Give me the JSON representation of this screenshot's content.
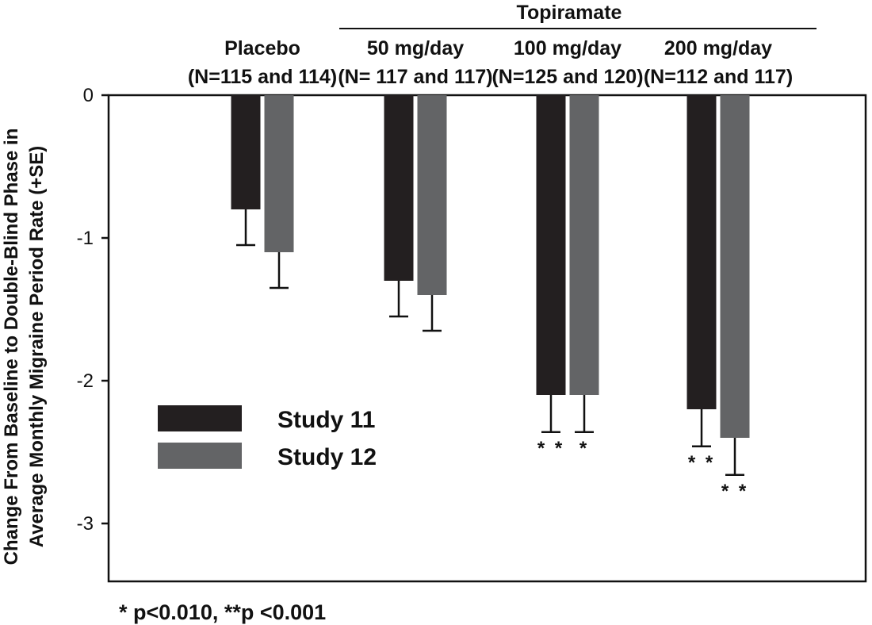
{
  "chart_data": {
    "type": "bar",
    "group_header": "Topiramate",
    "categories": [
      {
        "name": "Placebo",
        "n": "(N=115 and 114)"
      },
      {
        "name": "50 mg/day",
        "n": "(N= 117 and 117)"
      },
      {
        "name": "100 mg/day",
        "n": "(N=125 and 120)"
      },
      {
        "name": "200 mg/day",
        "n": "(N=112 and 117)"
      }
    ],
    "series": [
      {
        "name": "Study 11",
        "color": "#231f20",
        "values": [
          -0.8,
          -1.3,
          -2.1,
          -2.2
        ],
        "se": [
          0.25,
          0.25,
          0.26,
          0.26
        ],
        "significance": [
          "",
          "",
          "**",
          "**"
        ]
      },
      {
        "name": "Study 12",
        "color": "#636466",
        "values": [
          -1.1,
          -1.4,
          -2.1,
          -2.4
        ],
        "se": [
          0.25,
          0.25,
          0.26,
          0.26
        ],
        "significance": [
          "",
          "",
          "*",
          "**"
        ]
      }
    ],
    "ylabel_lines": [
      "Change From Baseline to Double-Blind Phase in",
      "Average Monthly Migraine Period Rate (+SE)"
    ],
    "yticks": [
      "0",
      "-1",
      "-2",
      "-3"
    ],
    "ytick_values": [
      0,
      -1,
      -2,
      -3
    ],
    "ylim": [
      -3.4,
      0
    ],
    "legend_position": "bottom-left",
    "footnote": "* p<0.010, **p <0.001"
  }
}
